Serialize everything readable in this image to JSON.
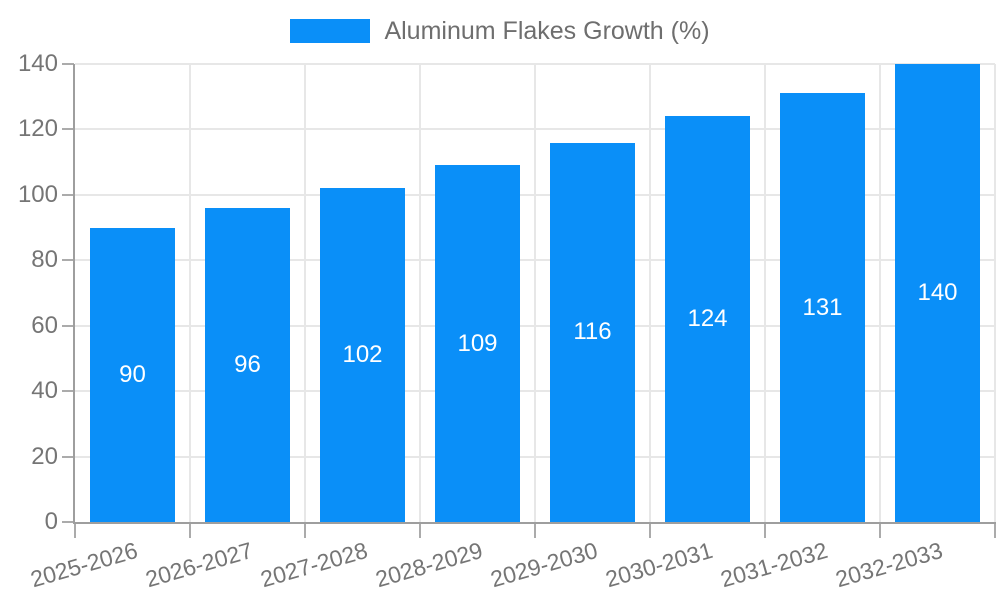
{
  "chart_data": {
    "type": "bar",
    "title": "",
    "series_label": "Aluminum Flakes Growth (%)",
    "legend_position": "top-center",
    "categories": [
      "2025-2026",
      "2026-2027",
      "2027-2028",
      "2028-2029",
      "2029-2030",
      "2030-2031",
      "2031-2032",
      "2032-2033"
    ],
    "values": [
      90,
      96,
      102,
      109,
      116,
      124,
      131,
      140
    ],
    "value_labels_shown": true,
    "xlabel": "",
    "ylabel": "",
    "ylim": [
      0,
      140
    ],
    "yticks": [
      0,
      20,
      40,
      60,
      80,
      100,
      120,
      140
    ],
    "grid": true,
    "colors": {
      "bar": "#0a8ff8",
      "tick_text": "#757575",
      "legend_text": "#6e6e6e",
      "value_label_text": "#ffffff",
      "gridline": "#e7e7e7",
      "axis": "#9e9e9e",
      "tick_mark": "#ababab",
      "background": "#ffffff"
    }
  }
}
